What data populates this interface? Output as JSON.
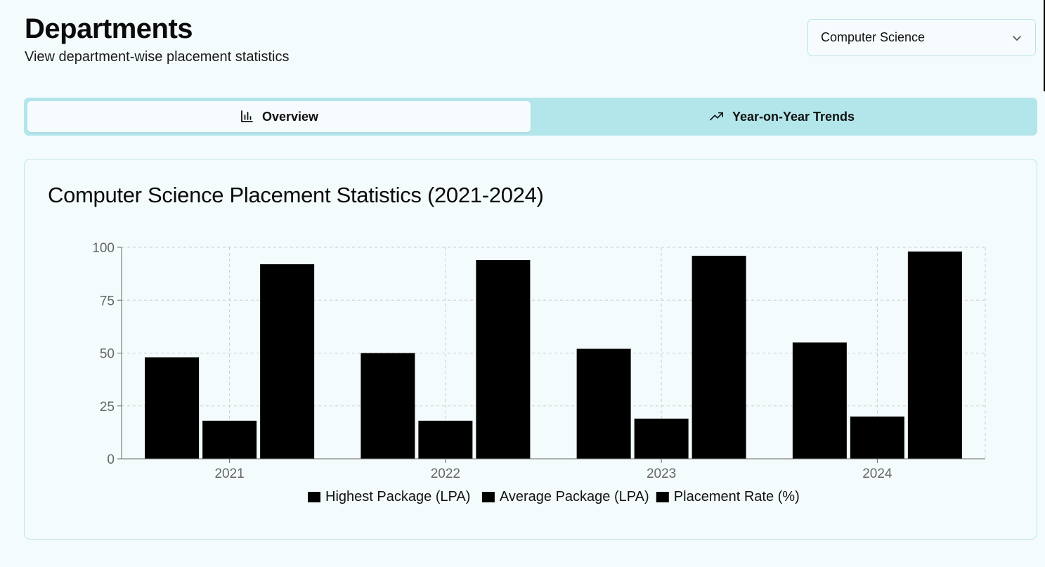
{
  "header": {
    "title": "Departments",
    "subtitle": "View department-wise placement statistics"
  },
  "department_select": {
    "value": "Computer Science",
    "icon": "chevron-down-icon"
  },
  "tabs": [
    {
      "label": "Overview",
      "icon": "bar-chart-icon",
      "active": true
    },
    {
      "label": "Year-on-Year Trends",
      "icon": "trending-up-icon",
      "active": false
    }
  ],
  "card": {
    "title": "Computer Science Placement Statistics (2021-2024)"
  },
  "colors": {
    "background": "#f4fbfc",
    "tab_bar": "#b3e6ea",
    "bar_fill": "#000000",
    "grid": "#cccccc",
    "axis": "#666666"
  },
  "chart_data": {
    "type": "bar",
    "categories": [
      "2021",
      "2022",
      "2023",
      "2024"
    ],
    "series": [
      {
        "name": "Highest Package (LPA)",
        "values": [
          48,
          50,
          52,
          55
        ]
      },
      {
        "name": "Average Package (LPA)",
        "values": [
          18,
          18,
          19,
          20
        ]
      },
      {
        "name": "Placement Rate (%)",
        "values": [
          92,
          94,
          96,
          98
        ]
      }
    ],
    "yticks": [
      0,
      25,
      50,
      75,
      100
    ],
    "ylim": [
      0,
      100
    ],
    "grid": true,
    "legend": "bottom-center"
  }
}
